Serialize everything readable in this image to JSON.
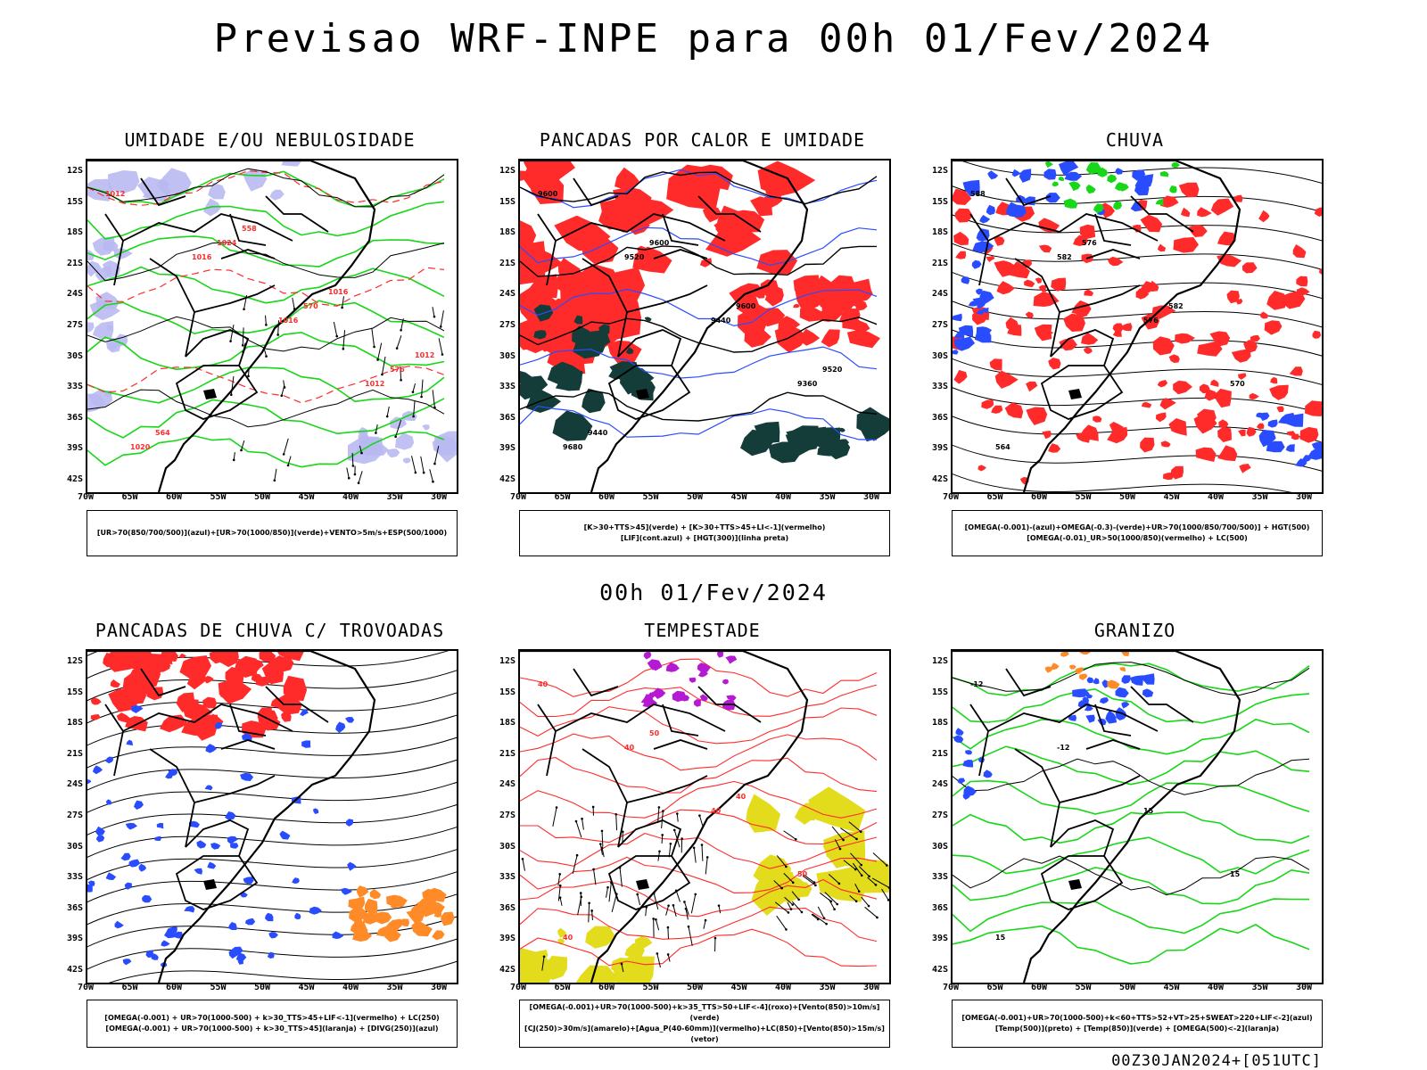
{
  "title": "Previsao WRF-INPE  para 00h 01/Fev/2024",
  "mid_title": "00h 01/Fev/2024",
  "footer": "00Z30JAN2024+[051UTC]",
  "latitudes": [
    "12S",
    "15S",
    "18S",
    "21S",
    "24S",
    "27S",
    "30S",
    "33S",
    "36S",
    "39S",
    "42S"
  ],
  "longitudes": [
    "70W",
    "65W",
    "60W",
    "55W",
    "50W",
    "45W",
    "40W",
    "35W",
    "30W"
  ],
  "colors": {
    "blue": "#2a4cff",
    "green": "#18d618",
    "red": "#ff2b2b",
    "lavender": "#b9b9f2",
    "darkteal": "#143c38",
    "yellow": "#e2dc1c",
    "purple": "#b41ad2",
    "orange": "#ff8a28"
  },
  "panels": [
    {
      "id": "umidade",
      "title": "UMIDADE E/OU NEBULOSIDADE",
      "legend_line1": "[UR>70(850/700/500)](azul)+[UR>70(1000/850)](verde)+VENTO>5m/s+ESP(500/1000)",
      "legend_line2": "",
      "contour_labels": [
        "1012",
        "1016",
        "1016",
        "1012",
        "1020",
        "1024",
        "570",
        "576",
        "564",
        "558",
        "1016",
        "1012"
      ]
    },
    {
      "id": "pancadas",
      "title": "PANCADAS POR CALOR E UMIDADE",
      "legend_line1": "[K>30+TTS>45](verde) + [K>30+TTS>45+LI<-1](vermelho)",
      "legend_line2": "[LIF](cont.azul) + [HGT(300)](linha preta)",
      "contour_labels": [
        "9600",
        "9520",
        "9440",
        "9360",
        "9680",
        "9600",
        "9600",
        "9520",
        "9440"
      ]
    },
    {
      "id": "chuva",
      "title": "CHUVA",
      "legend_line1": "[OMEGA(-0.001)-(azul)+OMEGA(-0.3)-(verde)+UR>70(1000/850/700/500)] + HGT(500)",
      "legend_line2": "[OMEGA(-0.01)_UR>50(1000/850)(vermelho) + LC(500)",
      "contour_labels": [
        "588",
        "582",
        "576",
        "570",
        "564",
        "576",
        "582"
      ]
    },
    {
      "id": "trovoadas",
      "title": "PANCADAS DE CHUVA C/ TROVOADAS",
      "legend_line1": "[OMEGA(-0.001) + UR>70(1000-500) + k>30_TTS>45+LIF<-1](vermelho) + LC(250)",
      "legend_line2": "[OMEGA(-0.001) + UR>70(1000-500) + k>30_TTS>45](laranja) + [DIVG(250)](azul)",
      "contour_labels": []
    },
    {
      "id": "tempestade",
      "title": "TEMPESTADE",
      "legend_line1": "[OMEGA(-0.001)+UR>70(1000-500)+k>35_TTS>50+LIF<-4](roxo)+[Vento(850)>10m/s](verde)",
      "legend_line2": "[CJ(250)>30m/s](amarelo)+[Agua_P(40-60mm)](vermelho)+LC(850)+[Vento(850)>15m/s](vetor)",
      "contour_labels": [
        "40",
        "40",
        "40",
        "50",
        "40",
        "50",
        "40"
      ]
    },
    {
      "id": "granizo",
      "title": "GRANIZO",
      "legend_line1": "[OMEGA(-0.001)+UR>70(1000-500)+k<60+TTS>52+VT>25+SWEAT>220+LIF<-2](azul)",
      "legend_line2": "[Temp(500)](preto) + [Temp(850)](verde) + [OMEGA(500)<-2](laranja)",
      "contour_labels": [
        "-12",
        "-12",
        "15",
        "15",
        "15"
      ]
    }
  ]
}
